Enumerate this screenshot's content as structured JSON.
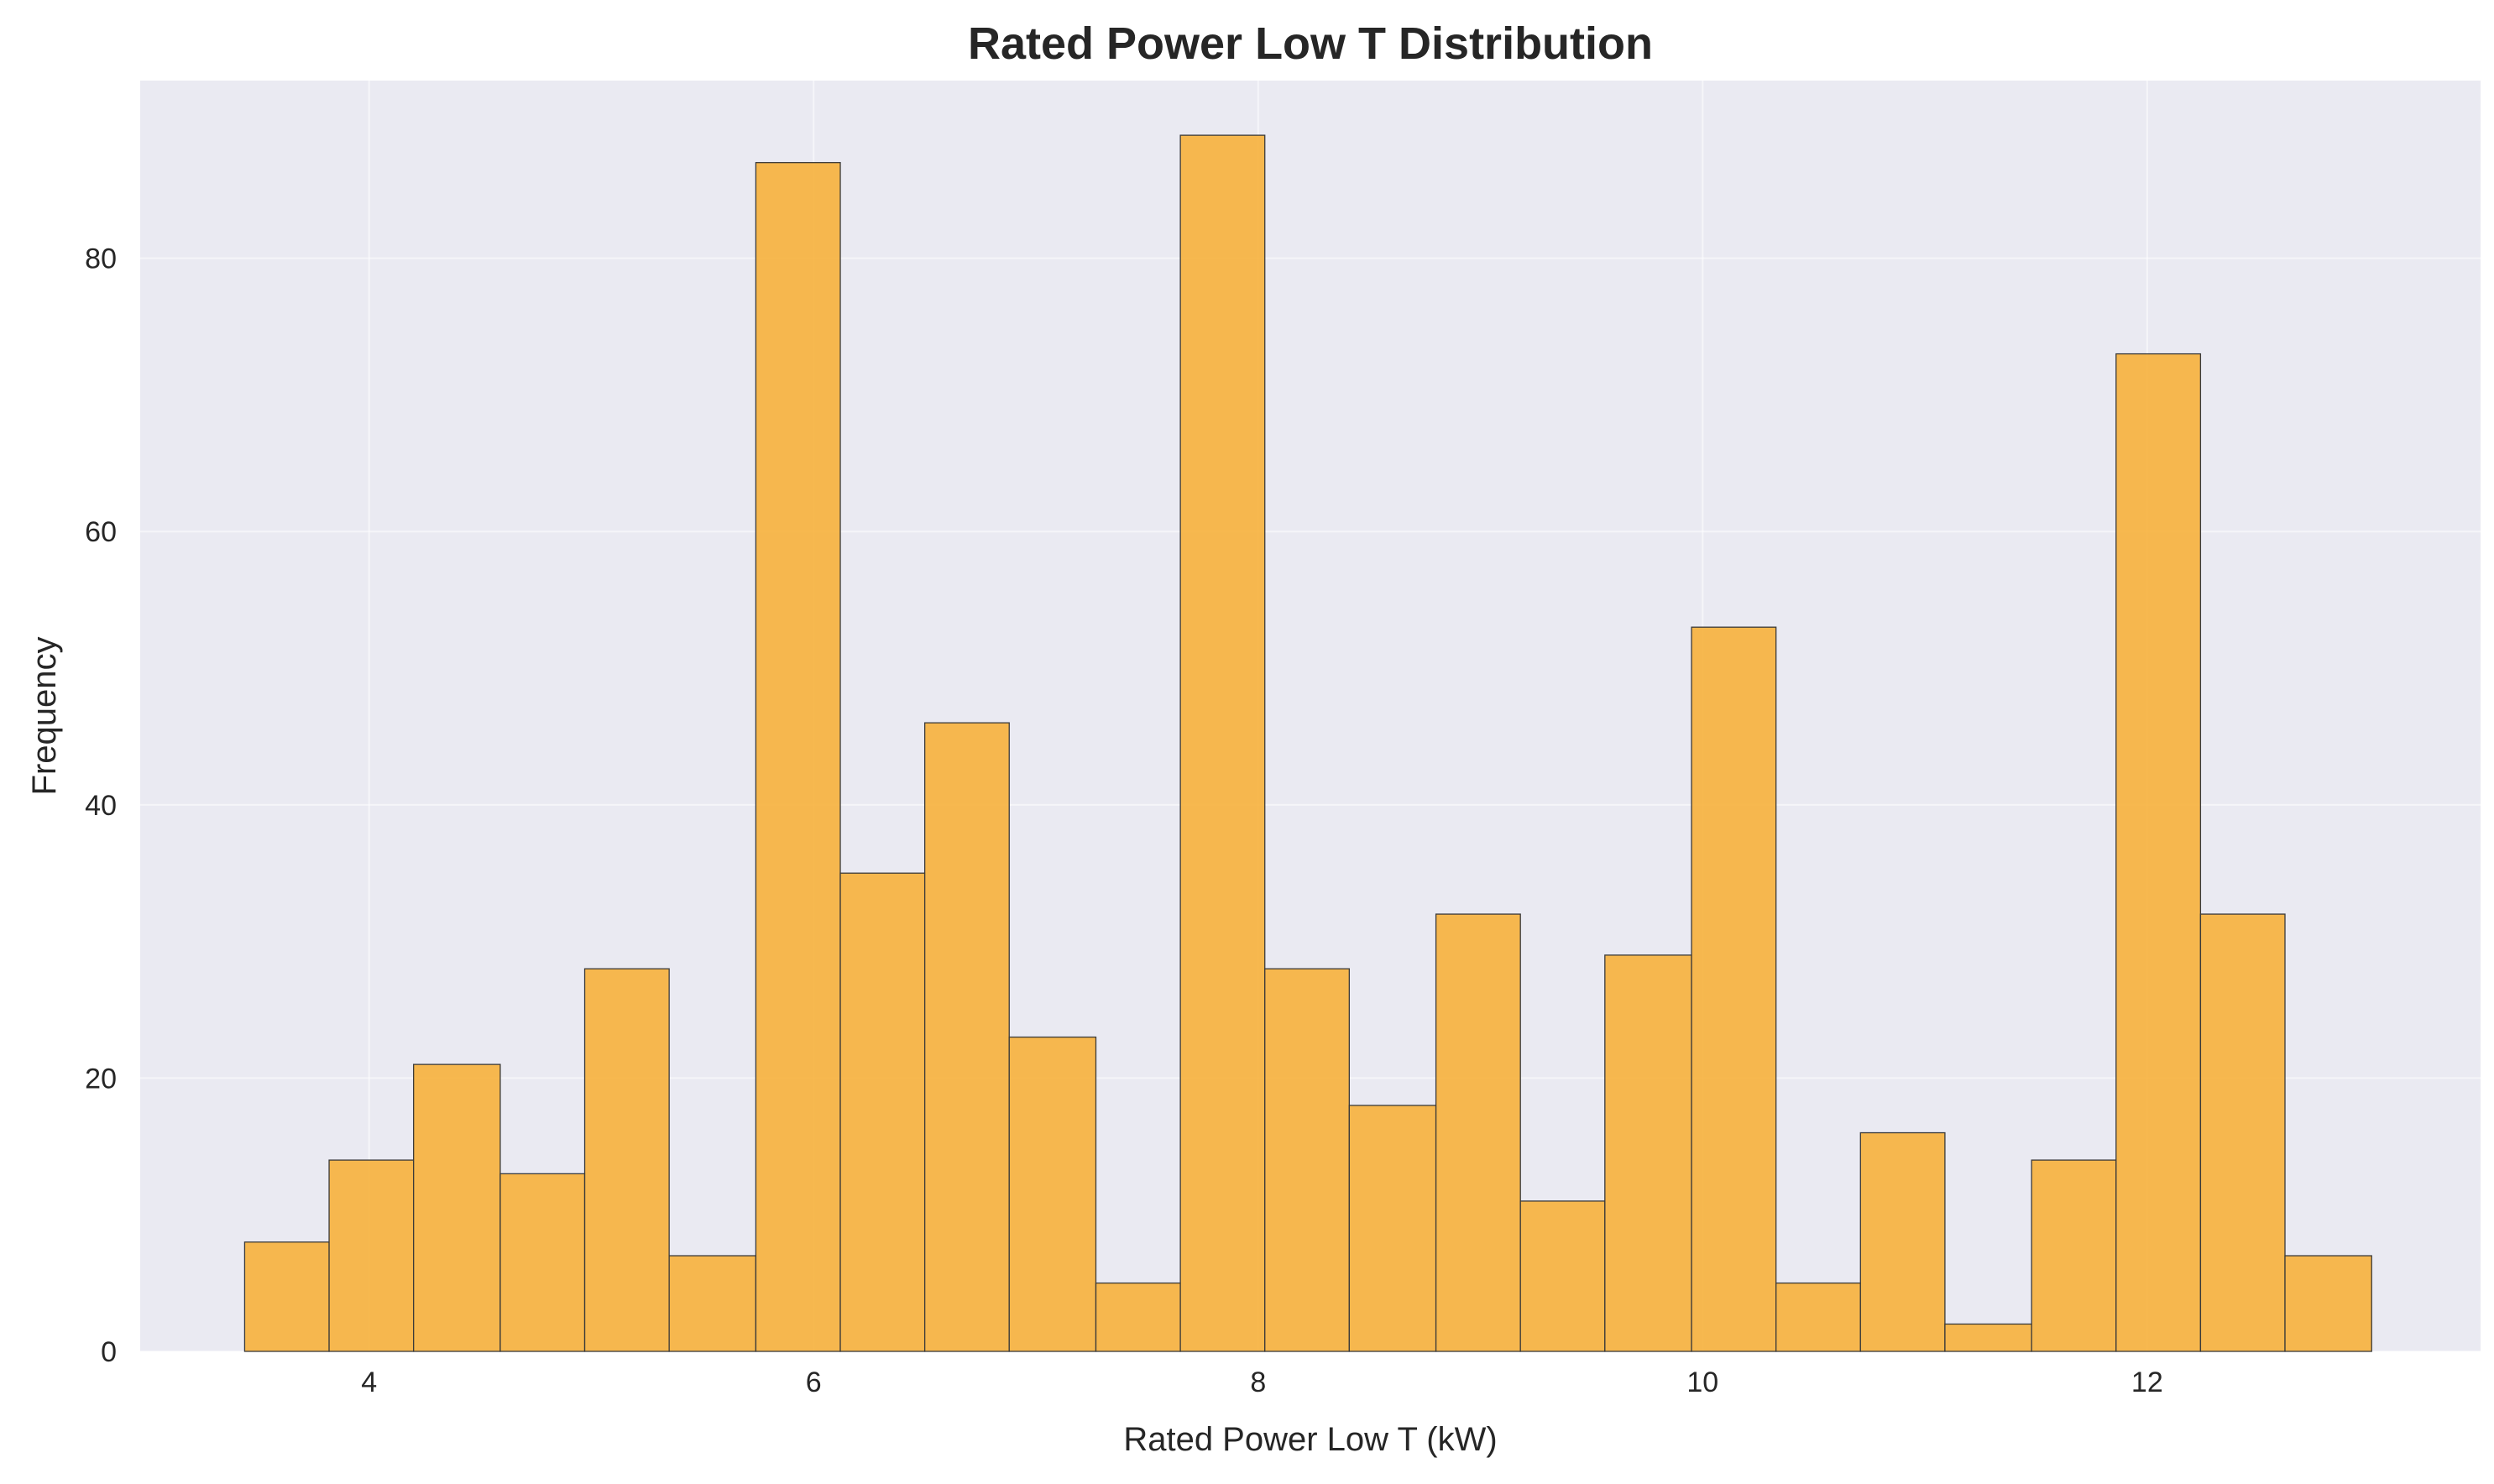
{
  "chart_data": {
    "type": "bar",
    "subtype": "histogram",
    "title": "Rated Power Low T Distribution",
    "xlabel": "Rated Power Low T (kW)",
    "ylabel": "Frequency",
    "xlim": [
      2.97,
      13.5
    ],
    "ylim": [
      0,
      93
    ],
    "xticks": [
      4,
      6,
      8,
      10,
      12
    ],
    "yticks": [
      0,
      20,
      40,
      60,
      80
    ],
    "grid": true,
    "bins": [
      {
        "x0": 3.44,
        "x1": 3.82,
        "count": 8
      },
      {
        "x0": 3.82,
        "x1": 4.2,
        "count": 14
      },
      {
        "x0": 4.2,
        "x1": 4.59,
        "count": 21
      },
      {
        "x0": 4.59,
        "x1": 4.97,
        "count": 13
      },
      {
        "x0": 4.97,
        "x1": 5.35,
        "count": 28
      },
      {
        "x0": 5.35,
        "x1": 5.74,
        "count": 7
      },
      {
        "x0": 5.74,
        "x1": 6.12,
        "count": 87
      },
      {
        "x0": 6.12,
        "x1": 6.5,
        "count": 35
      },
      {
        "x0": 6.5,
        "x1": 6.88,
        "count": 46
      },
      {
        "x0": 6.88,
        "x1": 7.27,
        "count": 23
      },
      {
        "x0": 7.27,
        "x1": 7.65,
        "count": 5
      },
      {
        "x0": 7.65,
        "x1": 8.03,
        "count": 89
      },
      {
        "x0": 8.03,
        "x1": 8.41,
        "count": 28
      },
      {
        "x0": 8.41,
        "x1": 8.8,
        "count": 18
      },
      {
        "x0": 8.8,
        "x1": 9.18,
        "count": 32
      },
      {
        "x0": 9.18,
        "x1": 9.56,
        "count": 11
      },
      {
        "x0": 9.56,
        "x1": 9.95,
        "count": 29
      },
      {
        "x0": 9.95,
        "x1": 10.33,
        "count": 53
      },
      {
        "x0": 10.33,
        "x1": 10.71,
        "count": 5
      },
      {
        "x0": 10.71,
        "x1": 11.09,
        "count": 16
      },
      {
        "x0": 11.09,
        "x1": 11.48,
        "count": 2
      },
      {
        "x0": 11.48,
        "x1": 11.86,
        "count": 14
      },
      {
        "x0": 11.86,
        "x1": 12.24,
        "count": 73
      },
      {
        "x0": 12.24,
        "x1": 12.62,
        "count": 32
      },
      {
        "x0": 12.62,
        "x1": 13.01,
        "count": 7
      }
    ],
    "colors": {
      "bar": "#f7b13c",
      "edge": "#3a3a3a",
      "plot_background": "#eaeaf2",
      "grid": "#ffffff"
    }
  }
}
